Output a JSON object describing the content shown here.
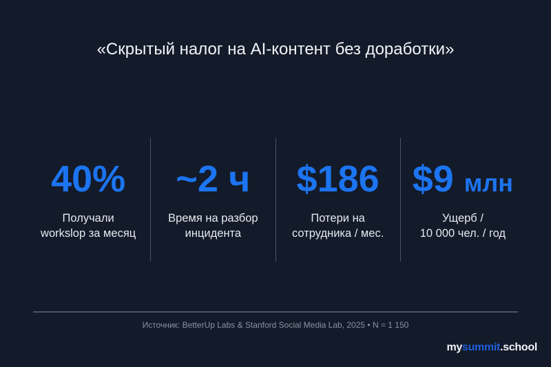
{
  "title": "«Скрытый налог на AI-контент без доработки»",
  "colors": {
    "background": "#131a29",
    "accent": "#1c74f0"
  },
  "stats": [
    {
      "value": "40%",
      "unit": "",
      "label_line1": "Получали",
      "label_line2": "workslop за месяц"
    },
    {
      "value": "~2 ч",
      "unit": "",
      "label_line1": "Время на разбор",
      "label_line2": "инцидента"
    },
    {
      "value": "$186",
      "unit": "",
      "label_line1": "Потери на",
      "label_line2": "сотрудника / мес."
    },
    {
      "value": "$9",
      "unit": "млн",
      "label_line1": "Ущерб /",
      "label_line2": "10 000 чел. / год"
    }
  ],
  "source": "Источник: BetterUp Labs & Stanford Social Media Lab, 2025 • N = 1 150",
  "logo": {
    "part1": "my",
    "part2": "summit",
    "part3": ".school"
  }
}
